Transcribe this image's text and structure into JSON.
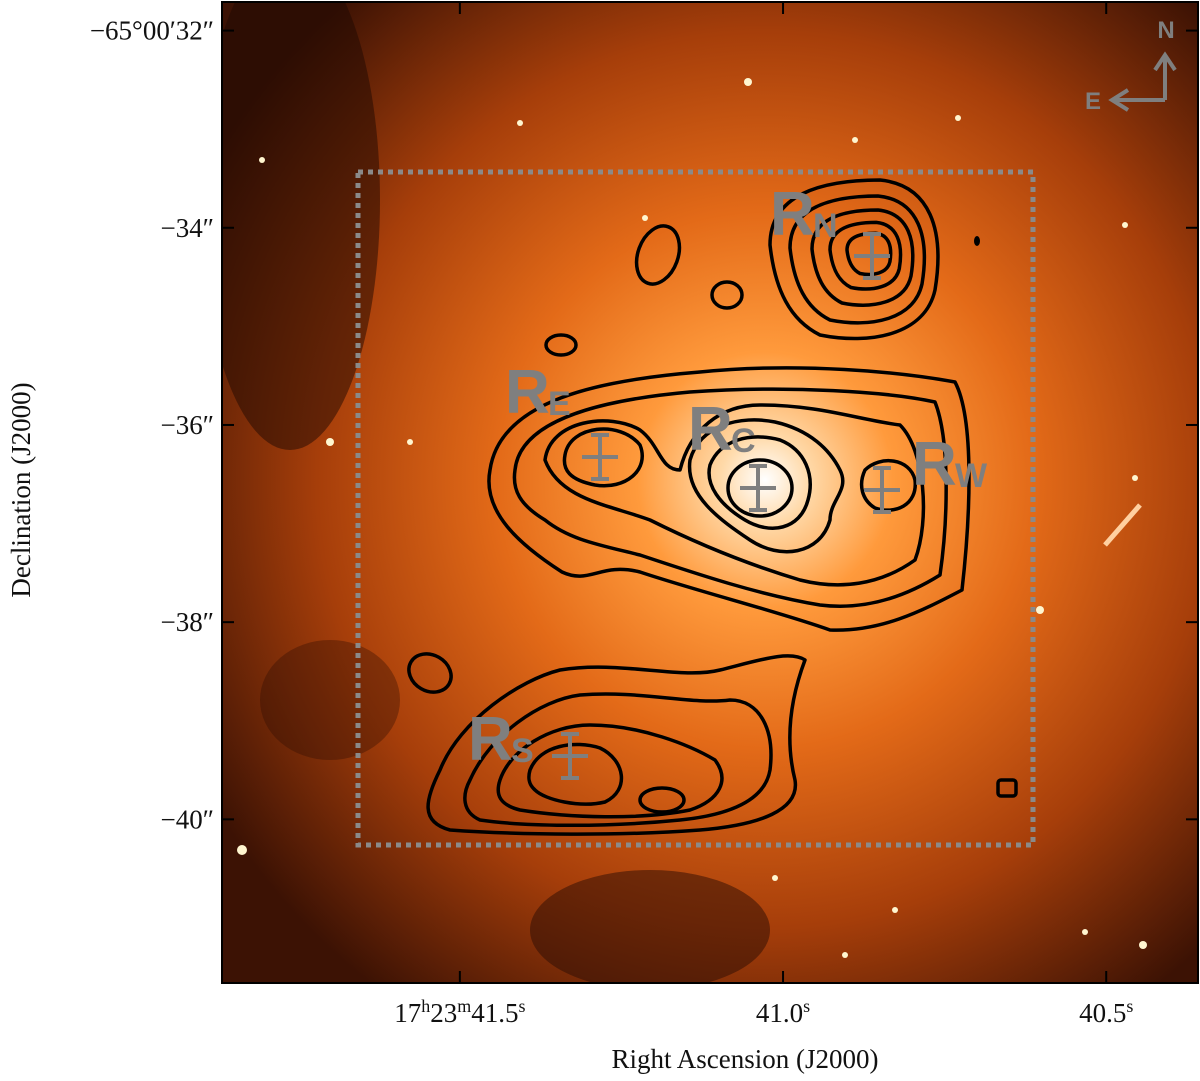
{
  "chart_data": {
    "type": "image",
    "xlabel": "Right Ascension (J2000)",
    "ylabel": "Declination (J2000)",
    "xlim": [
      41.868,
      40.358
    ],
    "ylim": [
      -41.66,
      -31.71
    ],
    "xticks": [
      {
        "value": 41.5,
        "label": "17h23m41.5s"
      },
      {
        "value": 41.0,
        "label": "41.0s"
      },
      {
        "value": 40.5,
        "label": "40.5s"
      }
    ],
    "yticks": [
      {
        "value": -32,
        "label": "−65°00′32″"
      },
      {
        "value": -34,
        "label": "−34″"
      },
      {
        "value": -36,
        "label": "−36″"
      },
      {
        "value": -38,
        "label": "−38″"
      },
      {
        "value": -40,
        "label": "−40″"
      }
    ],
    "regions": [
      {
        "label": "R",
        "subscript": "N"
      },
      {
        "label": "R",
        "subscript": "E"
      },
      {
        "label": "R",
        "subscript": "C"
      },
      {
        "label": "R",
        "subscript": "W"
      },
      {
        "label": "R",
        "subscript": "S"
      }
    ],
    "compass": {
      "north": "N",
      "east": "E"
    }
  }
}
